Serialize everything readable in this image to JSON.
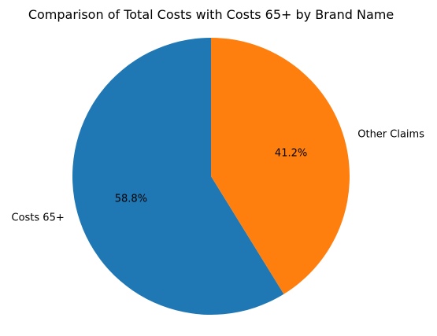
{
  "chart_data": {
    "type": "pie",
    "title": "Comparison of Total Costs with Costs 65+ by Brand Name",
    "start_angle_deg": 90,
    "direction": "counterclockwise",
    "slices": [
      {
        "label": "Costs 65+",
        "value": 58.8,
        "pct_label": "58.8%",
        "color": "#1f77b4"
      },
      {
        "label": "Other Claims",
        "value": 41.2,
        "pct_label": "41.2%",
        "color": "#ff7f0e"
      }
    ]
  }
}
